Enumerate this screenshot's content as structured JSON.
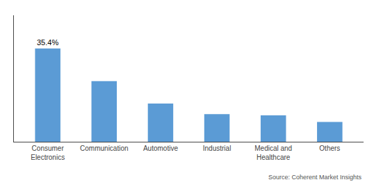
{
  "chart_data": {
    "type": "bar",
    "categories": [
      "Consumer\nElectronics",
      "Communication",
      "Automotive",
      "Industrial",
      "Medical and\nHealthcare",
      "Others"
    ],
    "values": [
      35.4,
      23.0,
      14.5,
      10.5,
      10.0,
      7.5
    ],
    "color": "#5B9BD5",
    "data_labels": true,
    "value_labels": [
      "35.4%",
      null,
      null,
      null,
      null,
      null
    ],
    "annotations": [
      "Source: Coherent Market Insights"
    ],
    "ylim": [
      0,
      48
    ],
    "yticks": [],
    "tick_labels": "x",
    "grid": false
  }
}
